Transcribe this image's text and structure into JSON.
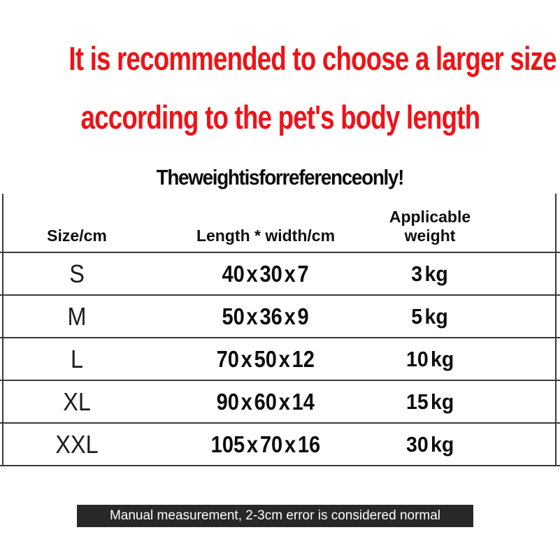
{
  "colors": {
    "accent_red": "#ee1318",
    "table_line": "#3a3a3a",
    "footer_bg": "#282828",
    "footer_text": "#ffffff"
  },
  "heading": {
    "line1": "It is recommended to choose a larger size",
    "line2": "according to the pet's body length"
  },
  "subtitle": "The weight is for reference only!",
  "size_table": {
    "columns": [
      "Size/cm",
      "Length * width/cm",
      "Applicable weight"
    ],
    "rows": [
      {
        "size": "S",
        "dimensions": "40 x 30 x 7",
        "weight": "3 kg"
      },
      {
        "size": "M",
        "dimensions": "50 x 36 x 9",
        "weight": "5 kg"
      },
      {
        "size": "L",
        "dimensions": "70 x 50 x 12",
        "weight": "10 kg"
      },
      {
        "size": "XL",
        "dimensions": "90 x 60 x 14",
        "weight": "15 kg"
      },
      {
        "size": "XXL",
        "dimensions": "105 x 70 x 16",
        "weight": "30 kg"
      }
    ]
  },
  "footer": {
    "note": "Manual measurement, 2-3cm error is considered normal"
  }
}
